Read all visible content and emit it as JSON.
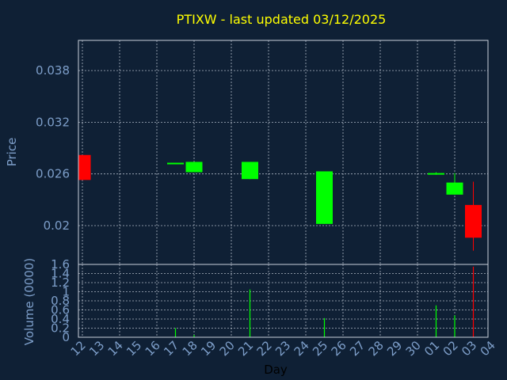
{
  "chart_data": {
    "type": "candlestick",
    "title": "PTIXW - last updated 03/12/2025",
    "xlabel": "Day",
    "price_panel": {
      "ylabel": "Price",
      "ylim": [
        0.0155,
        0.0415
      ],
      "yticks": [
        0.02,
        0.026,
        0.032,
        0.038
      ],
      "ytick_labels": [
        "0.02",
        "0.026",
        "0.032",
        "0.038"
      ],
      "grid": true
    },
    "volume_panel": {
      "ylabel": "Volume (0000)",
      "ylim": [
        0,
        1.6
      ],
      "yticks": [
        0,
        0.2,
        0.4,
        0.6,
        0.8,
        1,
        1.2,
        1.4,
        1.6
      ],
      "ytick_labels": [
        "0",
        "0.2",
        "0.4",
        "0.6",
        "0.8",
        "1",
        "1.2",
        "1.4",
        "1.6"
      ],
      "grid": true
    },
    "x_tick_labels": [
      "12",
      "13",
      "14",
      "15",
      "16",
      "17",
      "18",
      "19",
      "20",
      "21",
      "22",
      "23",
      "24",
      "25",
      "26",
      "27",
      "28",
      "29",
      "30",
      "01",
      "02",
      "03",
      "04"
    ],
    "candles": [
      {
        "day": "12",
        "open": 0.0282,
        "high": 0.0282,
        "low": 0.0253,
        "close": 0.0253,
        "volume": 0
      },
      {
        "day": "17",
        "open": 0.0273,
        "high": 0.0273,
        "low": 0.0273,
        "close": 0.0273,
        "volume": 0.2
      },
      {
        "day": "18",
        "open": 0.0262,
        "high": 0.0274,
        "low": 0.0262,
        "close": 0.0274,
        "volume": 0.05
      },
      {
        "day": "21",
        "open": 0.0254,
        "high": 0.0274,
        "low": 0.0254,
        "close": 0.0274,
        "volume": 1.05
      },
      {
        "day": "25",
        "open": 0.0202,
        "high": 0.0263,
        "low": 0.0202,
        "close": 0.0263,
        "volume": 0.42
      },
      {
        "day": "01",
        "open": 0.0261,
        "high": 0.0262,
        "low": 0.0259,
        "close": 0.0261,
        "volume": 0.7
      },
      {
        "day": "02",
        "open": 0.0236,
        "high": 0.0261,
        "low": 0.0236,
        "close": 0.025,
        "volume": 0.48
      },
      {
        "day": "03",
        "open": 0.0224,
        "high": 0.0251,
        "low": 0.0171,
        "close": 0.0186,
        "volume": 1.55
      }
    ],
    "colors": {
      "background": "#0f2035",
      "title": "#ffff00",
      "axis_text": "#7d9ec9",
      "grid": "#c8d0dc",
      "up": "#00ff00",
      "down": "#ff0000"
    }
  }
}
